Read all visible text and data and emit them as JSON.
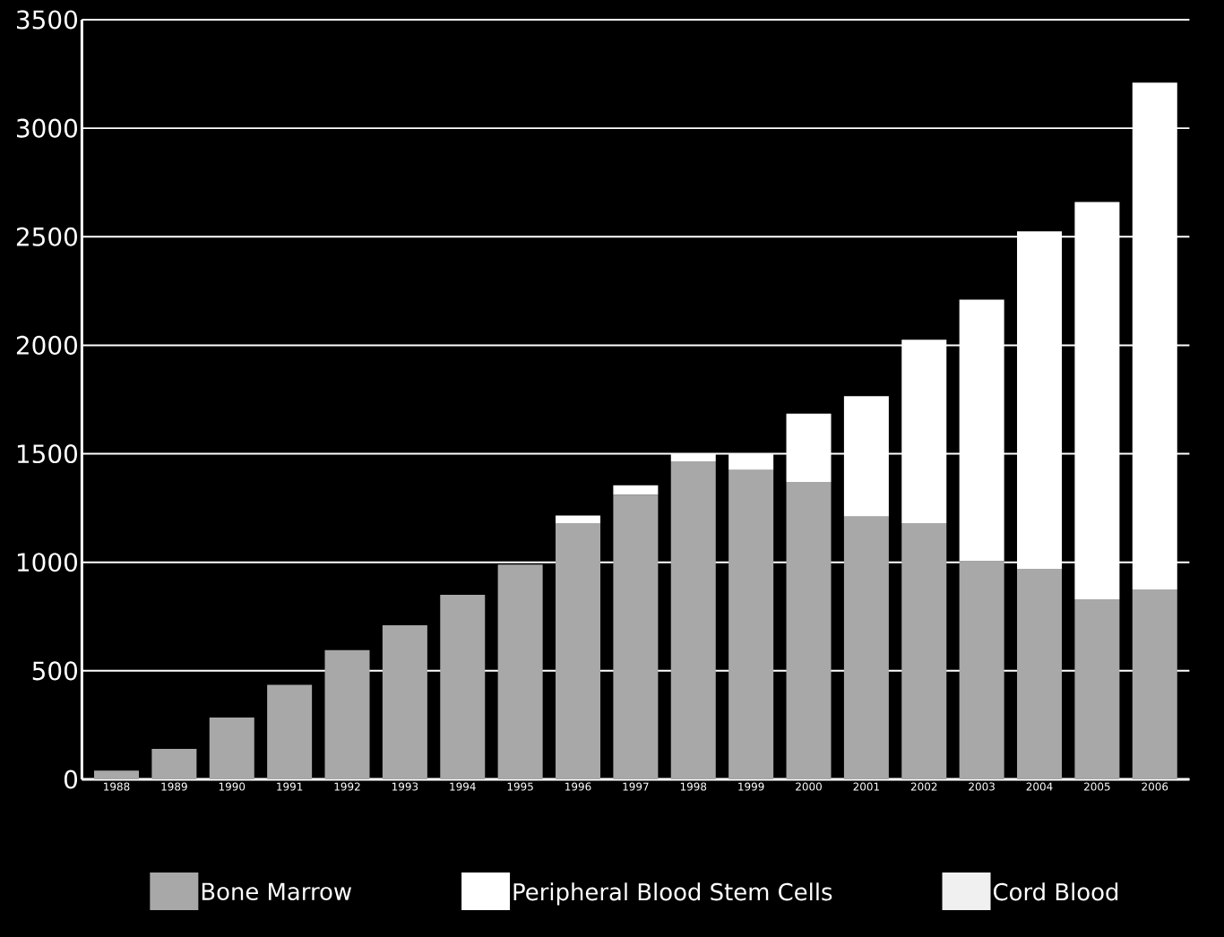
{
  "chart_data": {
    "type": "bar",
    "stacked": true,
    "categories": [
      "1988",
      "1989",
      "1990",
      "1991",
      "1992",
      "1993",
      "1994",
      "1995",
      "1996",
      "1997",
      "1998",
      "1999",
      "2000",
      "2001",
      "2002",
      "2003",
      "2004",
      "2005",
      "2006"
    ],
    "series": [
      {
        "name": "Bone Marrow",
        "color": "#a8a8a8",
        "values": [
          40,
          140,
          285,
          435,
          595,
          710,
          850,
          990,
          1180,
          1310,
          1465,
          1425,
          1370,
          1210,
          1180,
          1005,
          970,
          830,
          875
        ]
      },
      {
        "name": "Peripheral Blood Stem Cells",
        "color": "#ffffff",
        "values": [
          null,
          null,
          null,
          null,
          null,
          null,
          null,
          null,
          35,
          45,
          35,
          75,
          315,
          555,
          845,
          1205,
          1555,
          1830,
          2335
        ]
      },
      {
        "name": "Cord Blood",
        "color": "#f0f0f0",
        "values": [
          null,
          null,
          null,
          null,
          null,
          null,
          null,
          null,
          null,
          null,
          null,
          null,
          null,
          null,
          null,
          null,
          null,
          null,
          null
        ]
      }
    ],
    "ylim": [
      0,
      3500
    ],
    "yticks": [
      0,
      500,
      1000,
      1500,
      2000,
      2500,
      3000,
      3500
    ],
    "grid": "y",
    "legend": "bottom"
  }
}
